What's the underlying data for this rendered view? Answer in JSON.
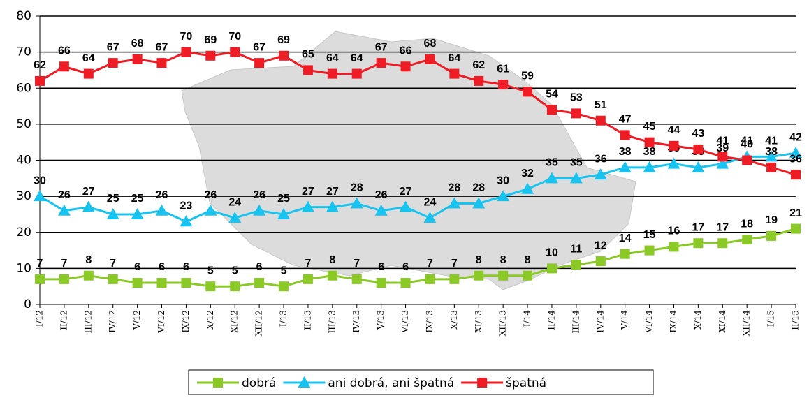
{
  "chart_data": {
    "type": "line",
    "categories": [
      "I/12",
      "II/12",
      "III/12",
      "IV/12",
      "V/12",
      "VI/12",
      "IX/12",
      "X/12",
      "XI/12",
      "XII/12",
      "I/13",
      "II/13",
      "III/13",
      "IV/13",
      "V/13",
      "VI/13",
      "IX/13",
      "X/13",
      "XI/13",
      "XII/13",
      "I/14",
      "II/14",
      "III/14",
      "IV/14",
      "V/14",
      "VI/14",
      "IX/14",
      "X/14",
      "XI/14",
      "XII/14",
      "I/15",
      "II/15"
    ],
    "series": [
      {
        "name": "dobrá",
        "color": "#8ac926",
        "marker": "square",
        "values": [
          7,
          7,
          8,
          7,
          6,
          6,
          6,
          5,
          5,
          6,
          5,
          7,
          8,
          7,
          6,
          6,
          7,
          7,
          8,
          8,
          8,
          10,
          11,
          12,
          14,
          15,
          16,
          17,
          17,
          18,
          19,
          21
        ]
      },
      {
        "name": "ani dobrá, ani špatná",
        "color": "#19c3f0",
        "marker": "triangle",
        "values": [
          30,
          26,
          27,
          25,
          25,
          26,
          23,
          26,
          24,
          26,
          25,
          27,
          27,
          28,
          26,
          27,
          24,
          28,
          28,
          30,
          32,
          35,
          35,
          36,
          38,
          38,
          39,
          38,
          39,
          41,
          41,
          42
        ]
      },
      {
        "name": "špatná",
        "color": "#ee1c24",
        "marker": "square",
        "values": [
          62,
          66,
          64,
          67,
          68,
          67,
          70,
          69,
          70,
          67,
          69,
          65,
          64,
          64,
          67,
          66,
          68,
          64,
          62,
          61,
          59,
          54,
          53,
          51,
          47,
          45,
          44,
          43,
          41,
          40,
          38,
          36
        ]
      }
    ],
    "ylim": [
      0,
      80
    ],
    "yticks": [
      0,
      10,
      20,
      30,
      40,
      50,
      60,
      70,
      80
    ],
    "grid": true
  }
}
